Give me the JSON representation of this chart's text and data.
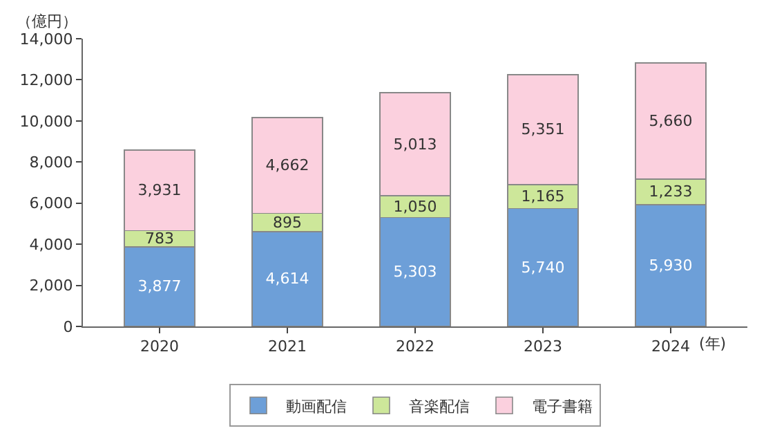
{
  "chart_data": {
    "type": "bar",
    "stacked": true,
    "ylabel": "（億円）",
    "xlabel": "(年)",
    "categories": [
      "2020",
      "2021",
      "2022",
      "2023",
      "2024"
    ],
    "series": [
      {
        "name": "動画配信",
        "color": "#6d9fd8",
        "values": [
          3877,
          4614,
          5303,
          5740,
          5930
        ],
        "value_labels": [
          "3,877",
          "4,614",
          "5,303",
          "5,740",
          "5,930"
        ]
      },
      {
        "name": "音楽配信",
        "color": "#cde79a",
        "values": [
          783,
          895,
          1050,
          1165,
          1233
        ],
        "value_labels": [
          "783",
          "895",
          "1,050",
          "1,165",
          "1,233"
        ]
      },
      {
        "name": "電子書籍",
        "color": "#fbd0de",
        "values": [
          3931,
          4662,
          5013,
          5351,
          5660
        ],
        "value_labels": [
          "3,931",
          "4,662",
          "5,013",
          "5,351",
          "5,660"
        ]
      }
    ],
    "ylim": [
      0,
      14000
    ],
    "yticks": [
      {
        "value": 0,
        "label": "0"
      },
      {
        "value": 2000,
        "label": "2,000"
      },
      {
        "value": 4000,
        "label": "4,000"
      },
      {
        "value": 6000,
        "label": "6,000"
      },
      {
        "value": 8000,
        "label": "8,000"
      },
      {
        "value": 10000,
        "label": "10,000"
      },
      {
        "value": 12000,
        "label": "12,000"
      },
      {
        "value": 14000,
        "label": "14,000"
      }
    ],
    "legend": "bottom"
  }
}
